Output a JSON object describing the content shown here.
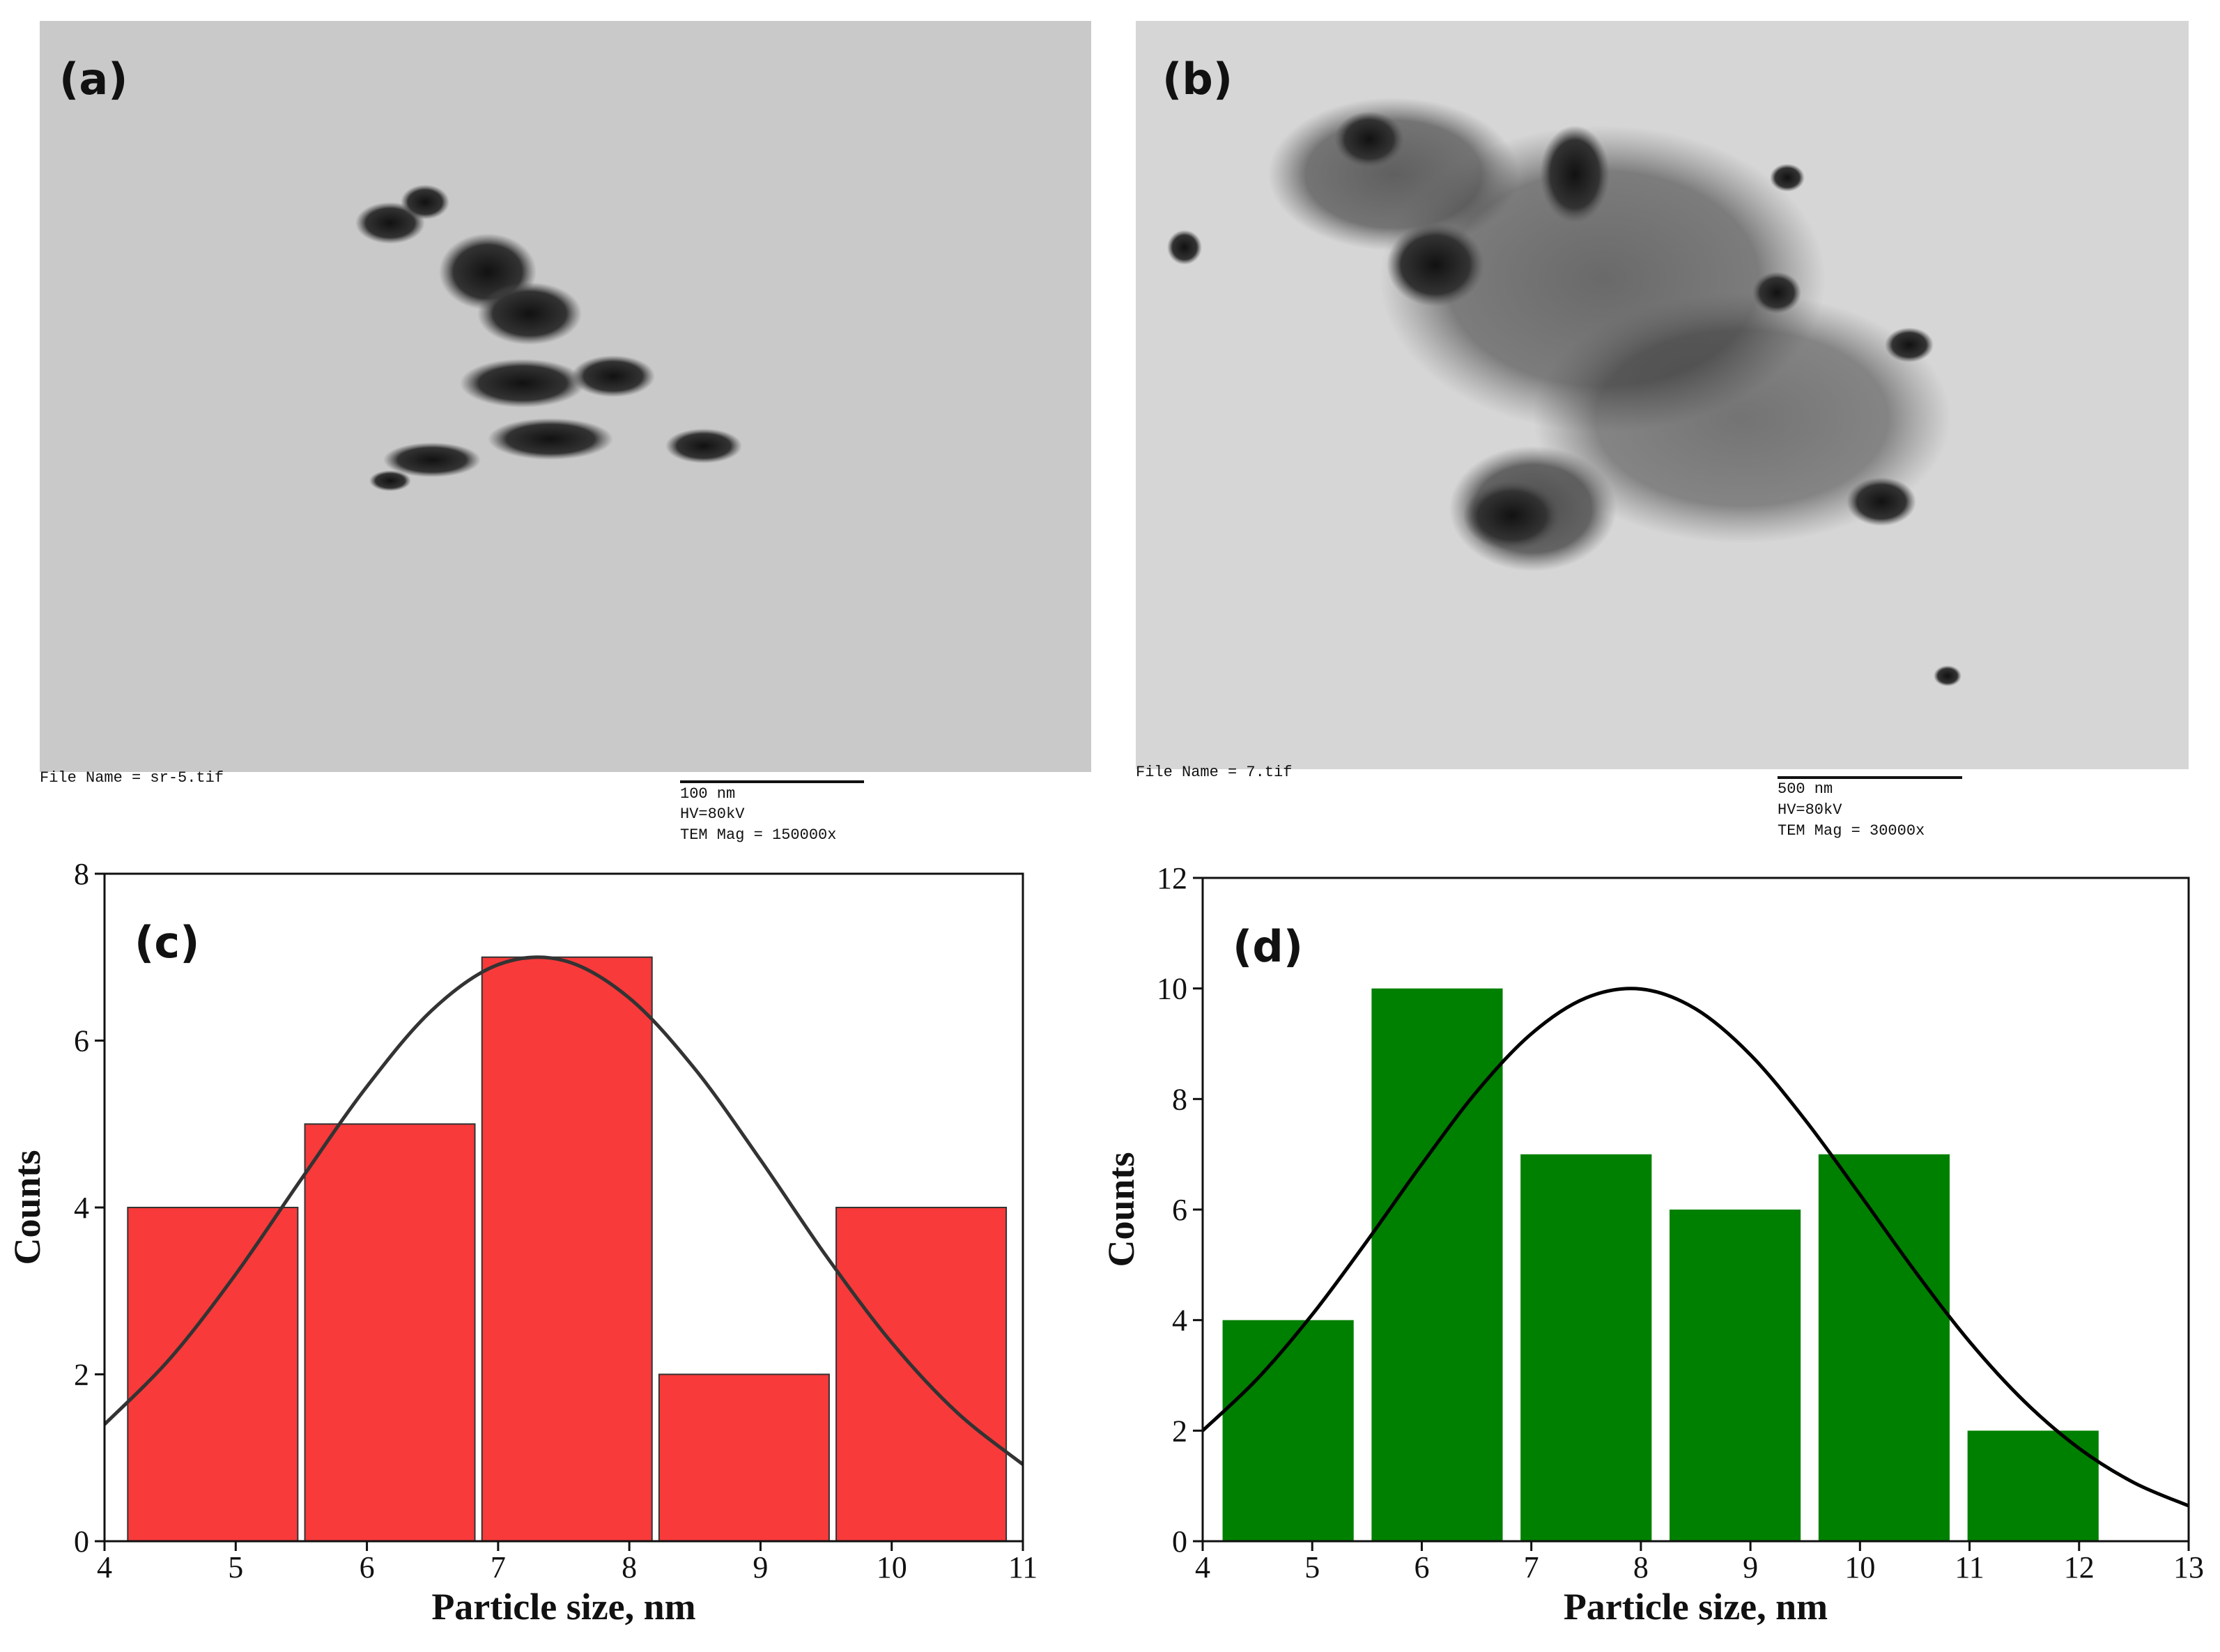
{
  "images": [
    {
      "label": "(a)",
      "file_name": "File Name = sr-5.tif",
      "scale_bar": "100 nm",
      "voltage": "HV=80kV",
      "magnification": "TEM Mag = 150000x"
    },
    {
      "label": "(b)",
      "file_name": "File Name = 7.tif",
      "scale_bar": "500 nm",
      "voltage": "HV=80kV",
      "magnification": "TEM Mag = 30000x"
    }
  ],
  "chart_data": [
    {
      "type": "histogram",
      "annotation": "(c)",
      "x_label": "Particle size, nm",
      "y_label": "Counts",
      "bins": [
        4.15,
        5.5,
        6.85,
        8.2,
        9.55,
        10.9
      ],
      "values": [
        4,
        5,
        7,
        2,
        4
      ],
      "color": "#f83a3a",
      "edgecolor": "#333333",
      "rwidth": 0.96,
      "fit": {
        "color": "#333333",
        "x": [
          4,
          4.5,
          5,
          5.5,
          6,
          6.5,
          7,
          7.5,
          8,
          8.5,
          9,
          9.5,
          10,
          10.5,
          11
        ],
        "y": [
          1.4,
          2.19,
          3.2,
          4.34,
          5.45,
          6.37,
          6.91,
          6.96,
          6.51,
          5.66,
          4.57,
          3.42,
          2.38,
          1.54,
          0.92
        ]
      },
      "xlim": [
        4,
        11
      ],
      "xticks": [
        4,
        5,
        6,
        7,
        8,
        9,
        10,
        11
      ],
      "ylim": [
        0,
        8
      ],
      "yticks": [
        0,
        2,
        4,
        6,
        8
      ]
    },
    {
      "type": "histogram",
      "annotation": "(d)",
      "x_label": "Particle size, nm",
      "y_label": "Counts",
      "bins": [
        4.1,
        5.46,
        6.82,
        8.18,
        9.54,
        10.9,
        12.26
      ],
      "values": [
        4,
        10,
        7,
        6,
        7,
        2
      ],
      "color": "#008000",
      "rwidth": 0.88,
      "fit": {
        "color": "#000000",
        "x": [
          4,
          4.5,
          5,
          5.5,
          6,
          6.5,
          7,
          7.5,
          8,
          8.5,
          9,
          9.5,
          10,
          10.5,
          11,
          11.5,
          12,
          12.5,
          13
        ],
        "y": [
          2.0,
          2.94,
          4.1,
          5.43,
          6.82,
          8.13,
          9.18,
          9.83,
          9.99,
          9.63,
          8.8,
          7.62,
          6.27,
          4.89,
          3.61,
          2.53,
          1.68,
          1.06,
          0.64
        ]
      },
      "xlim": [
        4,
        13
      ],
      "xticks": [
        4,
        5,
        6,
        7,
        8,
        9,
        10,
        11,
        12,
        13
      ],
      "ylim": [
        0,
        12
      ],
      "yticks": [
        0,
        2,
        4,
        6,
        8,
        10,
        12
      ]
    }
  ]
}
